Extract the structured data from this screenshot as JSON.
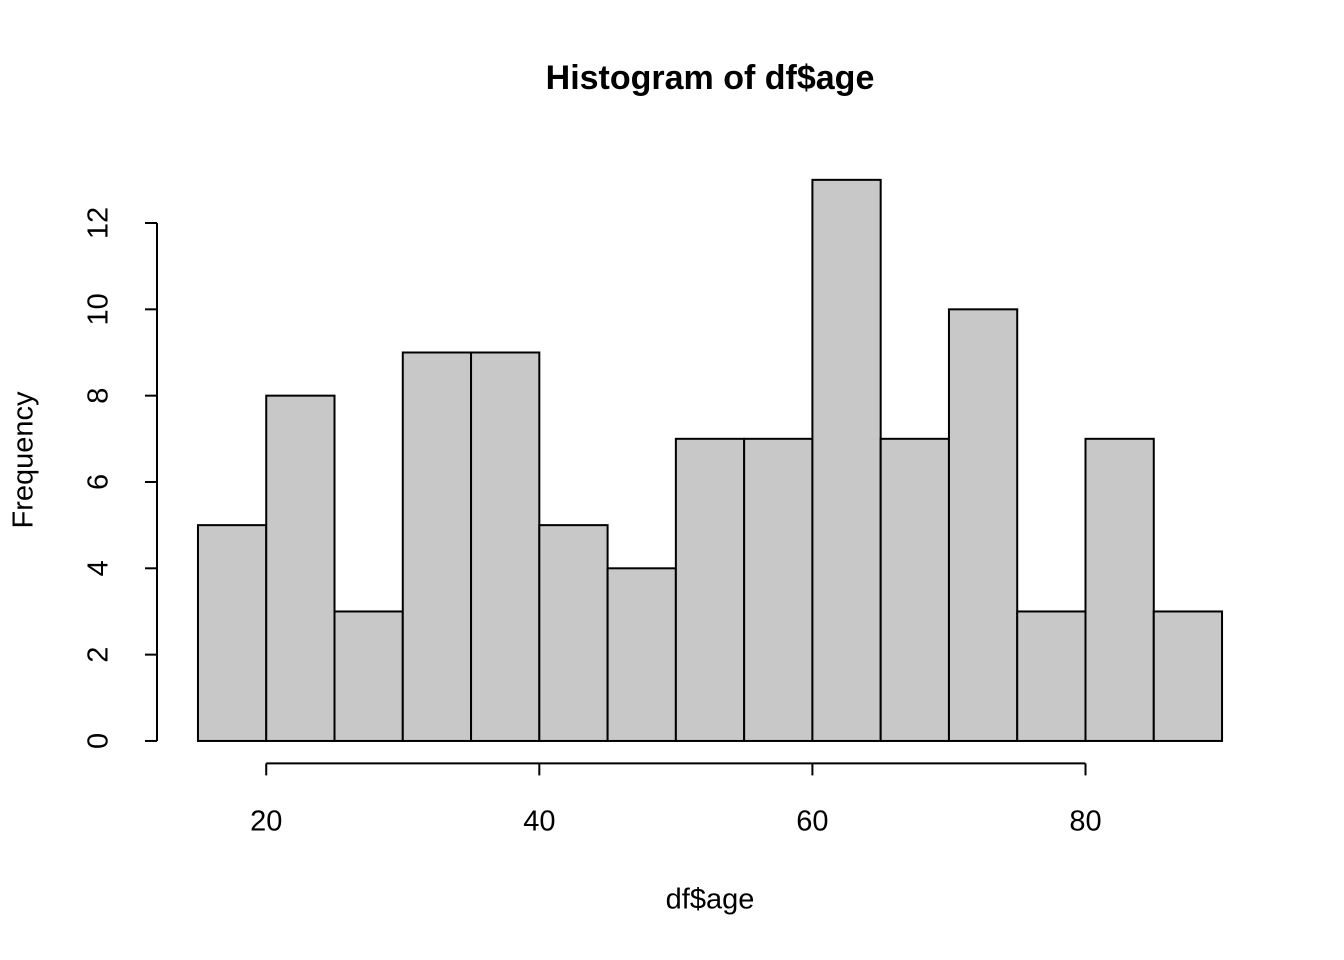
{
  "chart_data": {
    "type": "histogram",
    "title": "Histogram of df$age",
    "x_label": "df$age",
    "y_label": "Frequency",
    "bins": [
      15,
      20,
      25,
      30,
      35,
      40,
      45,
      50,
      55,
      60,
      65,
      70,
      75,
      80,
      85,
      90
    ],
    "values": [
      5,
      8,
      3,
      9,
      9,
      5,
      4,
      7,
      7,
      13,
      7,
      10,
      3,
      7,
      3
    ],
    "color": "#c8c8c8",
    "xlim": [
      12,
      93
    ],
    "ylim": [
      -0.52,
      13.52
    ],
    "xticks": [
      20,
      40,
      60,
      80
    ],
    "yticks": [
      0,
      2,
      4,
      6,
      8,
      10,
      12
    ],
    "grid": false
  }
}
